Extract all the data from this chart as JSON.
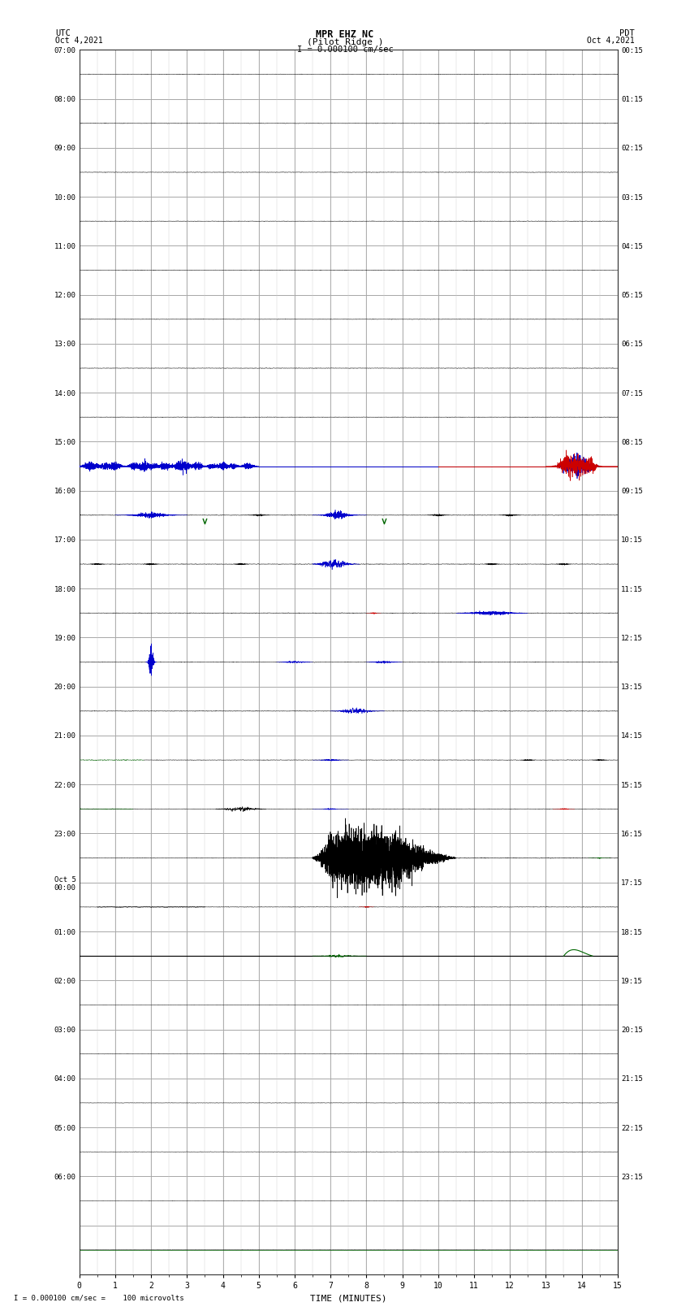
{
  "title_line1": "MPR EHZ NC",
  "title_line2": "(Pilot Ridge )",
  "scale_label": "I = 0.000100 cm/sec",
  "bottom_label": "I = 0.000100 cm/sec =    100 microvolts",
  "xlabel": "TIME (MINUTES)",
  "left_times": [
    "07:00",
    "08:00",
    "09:00",
    "10:00",
    "11:00",
    "12:00",
    "13:00",
    "14:00",
    "15:00",
    "16:00",
    "17:00",
    "18:00",
    "19:00",
    "20:00",
    "21:00",
    "22:00",
    "23:00",
    "Oct 5\n00:00",
    "01:00",
    "02:00",
    "03:00",
    "04:00",
    "05:00",
    "06:00",
    ""
  ],
  "right_times": [
    "00:15",
    "01:15",
    "02:15",
    "03:15",
    "04:15",
    "05:15",
    "06:15",
    "07:15",
    "08:15",
    "09:15",
    "10:15",
    "11:15",
    "12:15",
    "13:15",
    "14:15",
    "15:15",
    "16:15",
    "17:15",
    "18:15",
    "19:15",
    "20:15",
    "21:15",
    "22:15",
    "23:15",
    ""
  ],
  "n_rows": 25,
  "n_cols": 15,
  "background_color": "#ffffff",
  "grid_color": "#999999",
  "minor_grid_color": "#cccccc",
  "signal_color_blue": "#0000cc",
  "signal_color_red": "#cc0000",
  "signal_color_black": "#000000",
  "signal_color_green": "#006600",
  "signal_color_darkblue": "#000099"
}
